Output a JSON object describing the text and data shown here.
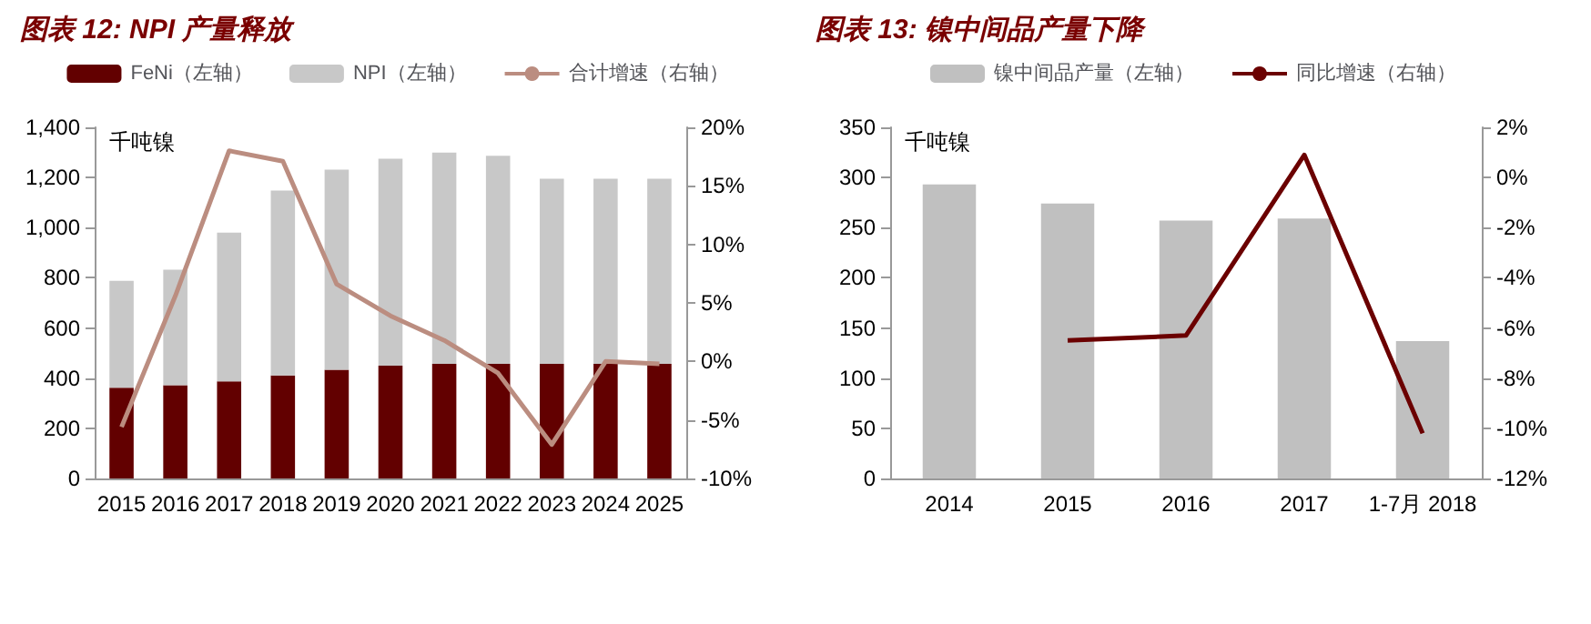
{
  "chart_data": [
    {
      "type": "bar",
      "title": "图表 12: NPI 产量释放",
      "ylabel": "千吨镍",
      "stacked": true,
      "legend": "top",
      "grid": false,
      "categories": [
        "2015",
        "2016",
        "2017",
        "2018",
        "2019",
        "2020",
        "2021",
        "2022",
        "2023",
        "2024",
        "2025"
      ],
      "series": [
        {
          "name": "FeNi（左轴）",
          "color": "#620000",
          "values": [
            362,
            372,
            387,
            411,
            433,
            450,
            457,
            457,
            457,
            457,
            457
          ]
        },
        {
          "name": "NPI（左轴）",
          "color": "#c8c8c8",
          "values": [
            426,
            460,
            593,
            737,
            798,
            825,
            842,
            830,
            738,
            738,
            738
          ]
        },
        {
          "name": "合计增速（右轴）",
          "type": "line",
          "axis": "y2",
          "color": "#bb8d80",
          "marker": "none",
          "values": [
            -5.6,
            5.6,
            18.0,
            17.1,
            6.6,
            3.9,
            1.8,
            -1.0,
            -7.1,
            0,
            -0.2
          ]
        }
      ],
      "ylim": [
        0,
        1400
      ],
      "yticks": [
        0,
        200,
        400,
        600,
        800,
        {
          "value": 1000,
          "label": "1,000"
        },
        {
          "value": 1200,
          "label": "1,200"
        },
        {
          "value": 1400,
          "label": "1,400"
        }
      ],
      "y2lim": [
        -10,
        20
      ],
      "y2ticks": [
        {
          "value": -10,
          "label": "-10%"
        },
        {
          "value": -5,
          "label": "-5%"
        },
        {
          "value": 0,
          "label": "0%"
        },
        {
          "value": 5,
          "label": "5%"
        },
        {
          "value": 10,
          "label": "10%"
        },
        {
          "value": 15,
          "label": "15%"
        },
        {
          "value": 20,
          "label": "20%"
        }
      ]
    },
    {
      "type": "bar",
      "title": "图表 13: 镍中间品产量下降",
      "ylabel": "千吨镍",
      "legend": "top",
      "grid": false,
      "categories": [
        "2014",
        "2015",
        "2016",
        "2017",
        "1-7月 2018"
      ],
      "series": [
        {
          "name": "镍中间品产量（左轴）",
          "color": "#c0c0c0",
          "values": [
            293,
            274,
            257,
            259,
            137
          ]
        },
        {
          "name": "同比增速（右轴）",
          "type": "line",
          "axis": "y2",
          "color": "#6b0000",
          "marker": "none",
          "values": [
            null,
            -6.5,
            -6.3,
            0.9,
            -10.2
          ]
        }
      ],
      "ylim": [
        0,
        350
      ],
      "yticks": [
        0,
        50,
        100,
        150,
        200,
        250,
        300,
        350
      ],
      "y2lim": [
        -12,
        2
      ],
      "y2ticks": [
        {
          "value": -12,
          "label": "-12%"
        },
        {
          "value": -10,
          "label": "-10%"
        },
        {
          "value": -8,
          "label": "-8%"
        },
        {
          "value": -6,
          "label": "-6%"
        },
        {
          "value": -4,
          "label": "-4%"
        },
        {
          "value": -2,
          "label": "-2%"
        },
        {
          "value": 0,
          "label": "0%"
        },
        {
          "value": 2,
          "label": "2%"
        }
      ]
    }
  ]
}
